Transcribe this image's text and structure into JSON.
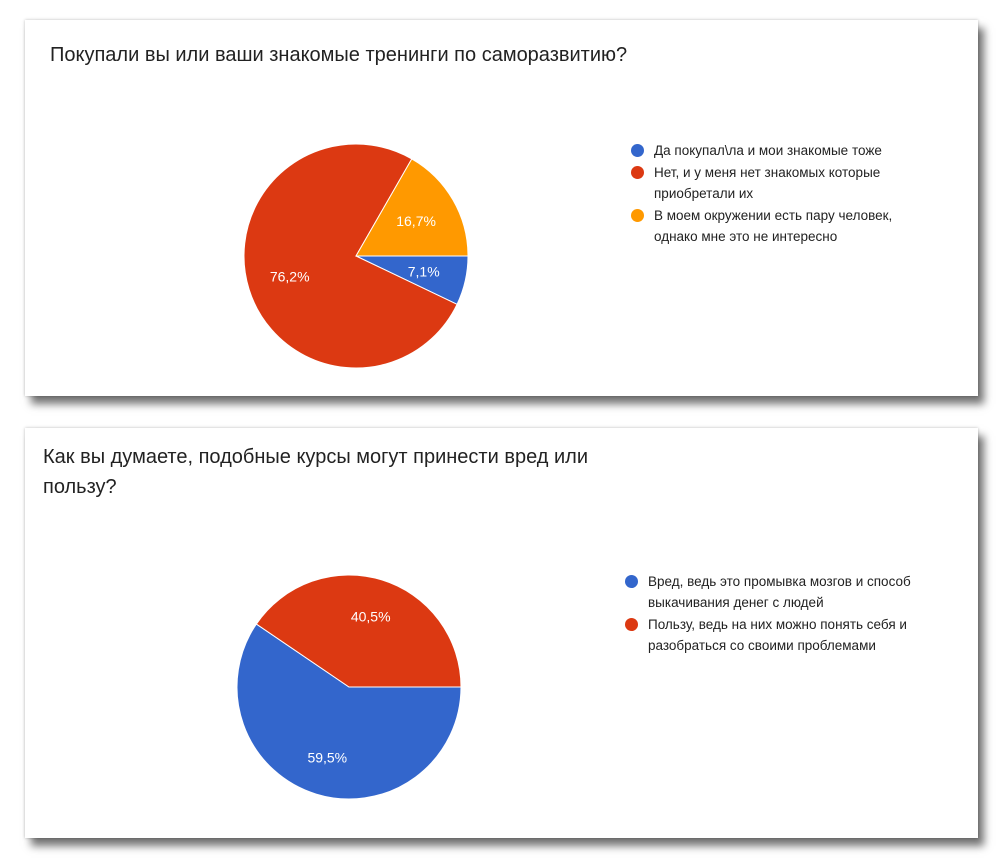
{
  "chart_data": [
    {
      "type": "pie",
      "title": "Покупали вы или ваши знакомые тренинги по саморазвитию?",
      "slices": [
        {
          "label": "Да покупал\\ла и мои знакомые тоже",
          "value": 7.1,
          "display": "7,1%",
          "color": "#3366cc"
        },
        {
          "label": "Нет, и у меня нет знакомых которые приобретали их",
          "value": 76.2,
          "display": "76,2%",
          "color": "#dc3912"
        },
        {
          "label": "В моем окружении есть пару человек, однако мне это не интересно",
          "value": 16.7,
          "display": "16,7%",
          "color": "#ff9900"
        }
      ],
      "legend_position": "right"
    },
    {
      "type": "pie",
      "title": "Как вы думаете, подобные курсы могут принести вред или пользу?",
      "slices": [
        {
          "label": "Вред, ведь это промывка мозгов и способ выкачивания денег с людей",
          "value": 59.5,
          "display": "59,5%",
          "color": "#3366cc"
        },
        {
          "label": "Пользу, ведь на них можно понять себя и разобраться со своими проблемами",
          "value": 40.5,
          "display": "40,5%",
          "color": "#dc3912"
        }
      ],
      "legend_position": "right"
    }
  ]
}
